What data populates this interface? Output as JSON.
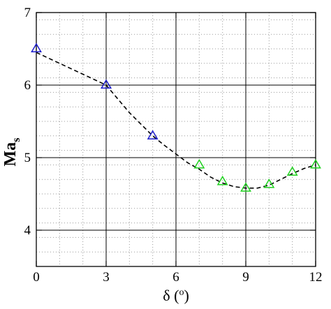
{
  "chart_data": {
    "type": "scatter",
    "xlim": [
      0,
      12
    ],
    "ylim": [
      3.5,
      7
    ],
    "x_ticks": [
      0,
      3,
      6,
      9,
      12
    ],
    "y_ticks": [
      4,
      5,
      6,
      7
    ],
    "x_tick_labels": [
      "0",
      "3",
      "6",
      "9",
      "12"
    ],
    "y_tick_labels": [
      "4",
      "5",
      "6",
      "7"
    ],
    "xlabel_symbol": "δ",
    "xlabel_unit_open": " (",
    "xlabel_unit_sup": "o",
    "xlabel_unit_close": ")",
    "ylabel_main": "Ma",
    "ylabel_sub": "s",
    "grid": true,
    "series": [
      {
        "marker": "triangle-open",
        "color": "#1c1ccc",
        "x": [
          0,
          3,
          5
        ],
        "y": [
          6.5,
          6.0,
          5.3
        ]
      },
      {
        "marker": "triangle-open",
        "color": "#1fd11f",
        "x": [
          7,
          8,
          9,
          10,
          11,
          12
        ],
        "y": [
          4.9,
          4.67,
          4.58,
          4.63,
          4.8,
          4.9
        ]
      }
    ],
    "trend_line": {
      "style": "dashed",
      "color": "#000000",
      "x": [
        0,
        1,
        2,
        3,
        4,
        5,
        5.5,
        6,
        6.5,
        7,
        7.5,
        8,
        8.5,
        9,
        9.5,
        10,
        10.5,
        11,
        11.5,
        12
      ],
      "y": [
        6.45,
        6.3,
        6.15,
        6.0,
        5.62,
        5.3,
        5.17,
        5.05,
        4.93,
        4.84,
        4.73,
        4.65,
        4.6,
        4.58,
        4.58,
        4.62,
        4.7,
        4.78,
        4.85,
        4.9
      ]
    }
  }
}
